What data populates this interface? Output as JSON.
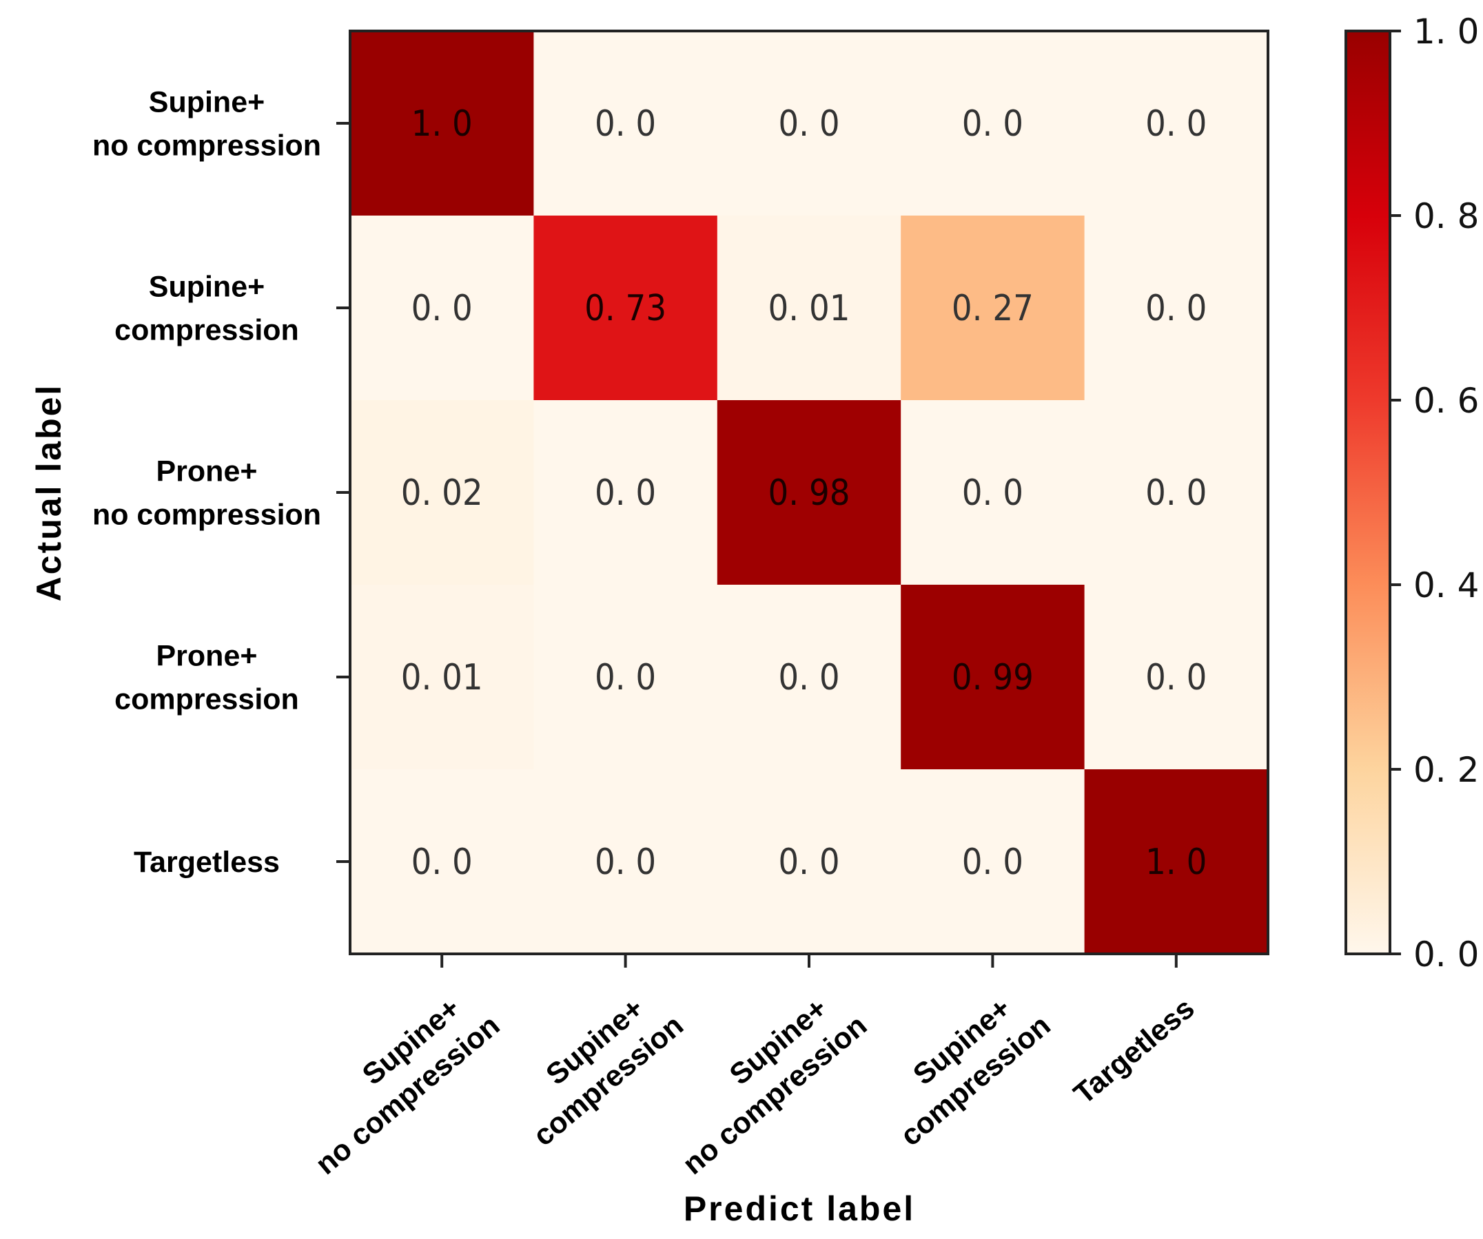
{
  "chart_data": {
    "type": "heatmap",
    "title": "",
    "xlabel": "Predict label",
    "ylabel": "Actual label",
    "row_labels": [
      [
        "Supine+",
        "no compression"
      ],
      [
        "Supine+",
        "compression"
      ],
      [
        "Prone+",
        "no compression"
      ],
      [
        "Prone+",
        "compression"
      ],
      [
        "Targetless"
      ]
    ],
    "col_labels": [
      [
        "Supine+",
        "no compression"
      ],
      [
        "Supine+",
        "compression"
      ],
      [
        "Supine+",
        "no compression"
      ],
      [
        "Supine+",
        "compression"
      ],
      [
        "Targetless"
      ]
    ],
    "values": [
      [
        1.0,
        0.0,
        0.0,
        0.0,
        0.0
      ],
      [
        0.0,
        0.73,
        0.01,
        0.27,
        0.0
      ],
      [
        0.02,
        0.0,
        0.98,
        0.0,
        0.0
      ],
      [
        0.01,
        0.0,
        0.0,
        0.99,
        0.0
      ],
      [
        0.0,
        0.0,
        0.0,
        0.0,
        1.0
      ]
    ],
    "cell_text": [
      [
        "1. 0",
        "0. 0",
        "0. 0",
        "0. 0",
        "0. 0"
      ],
      [
        "0. 0",
        "0. 73",
        "0. 01",
        "0. 27",
        "0. 0"
      ],
      [
        "0. 02",
        "0. 0",
        "0. 98",
        "0. 0",
        "0. 0"
      ],
      [
        "0. 01",
        "0. 0",
        "0. 0",
        "0. 99",
        "0. 0"
      ],
      [
        "0. 0",
        "0. 0",
        "0. 0",
        "0. 0",
        "1. 0"
      ]
    ],
    "colormap": "OrRd",
    "colorbar": {
      "range": [
        0.0,
        1.0
      ],
      "ticks": [
        0.0,
        0.2,
        0.4,
        0.6,
        0.8,
        1.0
      ],
      "tick_labels": [
        "0. 0",
        "0. 2",
        "0. 4",
        "0. 6",
        "0. 8",
        "1. 0"
      ],
      "stops": [
        "#fff7ec",
        "#fdd49e",
        "#fc8d59",
        "#ee3a2c",
        "#d7000a",
        "#990000"
      ]
    }
  }
}
